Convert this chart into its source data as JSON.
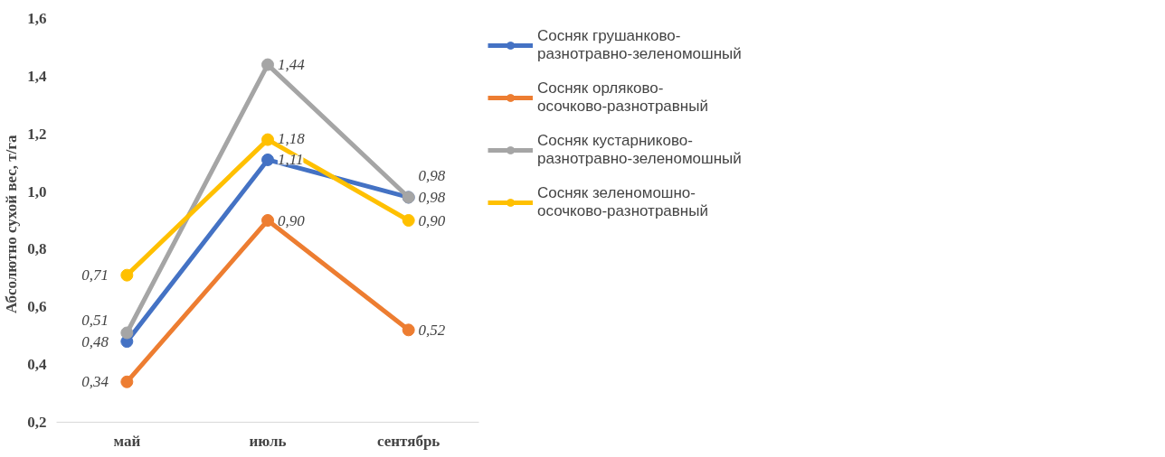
{
  "chart_data": {
    "type": "line",
    "ylabel": "Абсолютно  сухой  вес, т/га",
    "categories": [
      "май",
      "июль",
      "сентябрь"
    ],
    "series": [
      {
        "name": "Сосняк грушанково-разнотравно-зеленомошный",
        "color": "#4472c4",
        "values": [
          0.48,
          1.11,
          0.98
        ],
        "value_labels": [
          "0,48",
          "1,11",
          "0,98"
        ]
      },
      {
        "name": "Сосняк орляково-осочково-разнотравный",
        "color": "#ed7d31",
        "values": [
          0.34,
          0.9,
          0.52
        ],
        "value_labels": [
          "0,34",
          "0,90",
          "0,52"
        ]
      },
      {
        "name": "Сосняк кустарниково-разнотравно-зеленомошный",
        "color": "#a5a5a5",
        "values": [
          0.51,
          1.44,
          0.98
        ],
        "value_labels": [
          "0,51",
          "1,44",
          "0,98"
        ]
      },
      {
        "name": "Сосняк зеленомошно-осочково-разнотравный",
        "color": "#ffc000",
        "values": [
          0.71,
          1.18,
          0.9
        ],
        "value_labels": [
          "0,71",
          "1,18",
          "0,90"
        ]
      }
    ],
    "ylim": [
      0.2,
      1.6
    ],
    "yticks": [
      {
        "value": 0.2,
        "label": "0,2"
      },
      {
        "value": 0.4,
        "label": "0,4"
      },
      {
        "value": 0.6,
        "label": "0,6"
      },
      {
        "value": 0.8,
        "label": "0,8"
      },
      {
        "value": 1.0,
        "label": "1,0"
      },
      {
        "value": 1.2,
        "label": "1,2"
      },
      {
        "value": 1.4,
        "label": "1,4"
      },
      {
        "value": 1.6,
        "label": "1,6"
      }
    ],
    "grid": false,
    "legend": "right",
    "marker": "circle",
    "line_style": "solid"
  }
}
